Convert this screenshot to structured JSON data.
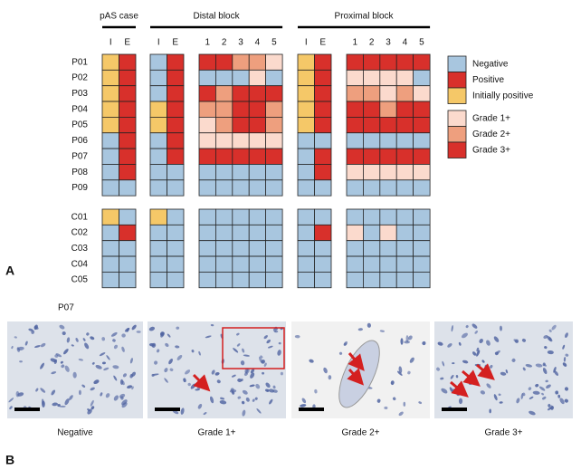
{
  "panel_a": {
    "label": "A",
    "groups": [
      {
        "title": "pAS case",
        "columns": [
          "I",
          "E"
        ]
      },
      {
        "title": "Distal block",
        "columns": [
          "I",
          "E",
          "1",
          "2",
          "3",
          "4",
          "5"
        ]
      },
      {
        "title": "Proximal block",
        "columns": [
          "I",
          "E",
          "1",
          "2",
          "3",
          "4",
          "5"
        ]
      }
    ],
    "row_groups": [
      [
        {
          "name": "P01",
          "cells": [
            [
              2,
              1
            ],
            [
              0,
              1,
              5,
              5,
              4,
              4,
              3
            ],
            [
              2,
              1,
              5,
              5,
              5,
              5,
              5
            ]
          ]
        },
        {
          "name": "P02",
          "cells": [
            [
              2,
              1
            ],
            [
              0,
              1,
              0,
              0,
              0,
              3,
              0
            ],
            [
              2,
              1,
              3,
              3,
              3,
              3,
              0
            ]
          ]
        },
        {
          "name": "P03",
          "cells": [
            [
              2,
              1
            ],
            [
              0,
              1,
              5,
              4,
              5,
              5,
              5
            ],
            [
              2,
              1,
              4,
              4,
              3,
              4,
              3
            ]
          ]
        },
        {
          "name": "P04",
          "cells": [
            [
              2,
              1
            ],
            [
              2,
              1,
              4,
              4,
              5,
              5,
              4
            ],
            [
              2,
              1,
              5,
              5,
              4,
              5,
              5
            ]
          ]
        },
        {
          "name": "P05",
          "cells": [
            [
              2,
              1
            ],
            [
              2,
              1,
              3,
              4,
              5,
              5,
              4
            ],
            [
              2,
              1,
              5,
              5,
              5,
              5,
              5
            ]
          ]
        },
        {
          "name": "P06",
          "cells": [
            [
              0,
              1
            ],
            [
              0,
              1,
              3,
              3,
              3,
              3,
              3
            ],
            [
              0,
              0,
              0,
              0,
              0,
              0,
              0
            ]
          ]
        },
        {
          "name": "P07",
          "cells": [
            [
              0,
              1
            ],
            [
              0,
              1,
              5,
              5,
              5,
              5,
              5
            ],
            [
              0,
              1,
              5,
              5,
              5,
              5,
              5
            ]
          ]
        },
        {
          "name": "P08",
          "cells": [
            [
              0,
              1
            ],
            [
              0,
              0,
              0,
              0,
              0,
              0,
              0
            ],
            [
              0,
              1,
              3,
              3,
              3,
              3,
              3
            ]
          ]
        },
        {
          "name": "P09",
          "cells": [
            [
              0,
              0
            ],
            [
              0,
              0,
              0,
              0,
              0,
              0,
              0
            ],
            [
              0,
              0,
              0,
              0,
              0,
              0,
              0
            ]
          ]
        }
      ],
      [
        {
          "name": "C01",
          "cells": [
            [
              2,
              0
            ],
            [
              2,
              0,
              0,
              0,
              0,
              0,
              0
            ],
            [
              0,
              0,
              0,
              0,
              0,
              0,
              0
            ]
          ]
        },
        {
          "name": "C02",
          "cells": [
            [
              0,
              1
            ],
            [
              0,
              0,
              0,
              0,
              0,
              0,
              0
            ],
            [
              0,
              1,
              3,
              0,
              3,
              0,
              0
            ]
          ]
        },
        {
          "name": "C03",
          "cells": [
            [
              0,
              0
            ],
            [
              0,
              0,
              0,
              0,
              0,
              0,
              0
            ],
            [
              0,
              0,
              0,
              0,
              0,
              0,
              0
            ]
          ]
        },
        {
          "name": "C04",
          "cells": [
            [
              0,
              0
            ],
            [
              0,
              0,
              0,
              0,
              0,
              0,
              0
            ],
            [
              0,
              0,
              0,
              0,
              0,
              0,
              0
            ]
          ]
        },
        {
          "name": "C05",
          "cells": [
            [
              0,
              0
            ],
            [
              0,
              0,
              0,
              0,
              0,
              0,
              0
            ],
            [
              0,
              0,
              0,
              0,
              0,
              0,
              0
            ]
          ]
        }
      ]
    ],
    "legend": [
      {
        "label": "Negative",
        "color": "#a8c6df"
      },
      {
        "label": "Positive",
        "color": "#d8302b"
      },
      {
        "label": "Initially positive",
        "color": "#f5c868"
      },
      {
        "label": "Grade 1+",
        "color": "#fbdacd"
      },
      {
        "label": "Grade 2+",
        "color": "#ee9f7e"
      },
      {
        "label": "Grade 3+",
        "color": "#d8302b"
      }
    ]
  },
  "panel_b": {
    "label": "B",
    "case": "P07",
    "images": [
      "Negative",
      "Grade 1+",
      "Grade 2+",
      "Grade 3+"
    ]
  }
}
